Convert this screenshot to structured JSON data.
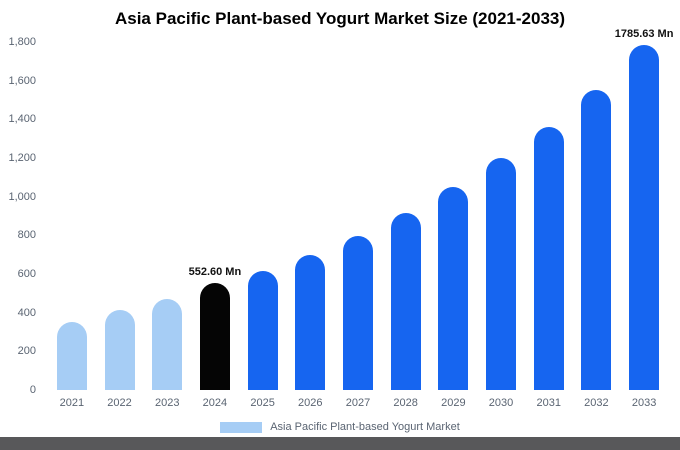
{
  "chart_data": {
    "type": "bar",
    "title": "Asia Pacific Plant-based Yogurt Market Size (2021-2033)",
    "categories": [
      "2021",
      "2022",
      "2023",
      "2024",
      "2025",
      "2026",
      "2027",
      "2028",
      "2029",
      "2030",
      "2031",
      "2032",
      "2033"
    ],
    "values": [
      352,
      415,
      472,
      552.6,
      618,
      700,
      798,
      915,
      1048,
      1198,
      1362,
      1550,
      1785.63
    ],
    "bar_colors": [
      "#a6cdf5",
      "#a6cdf5",
      "#a6cdf5",
      "#050505",
      "#1665f0",
      "#1665f0",
      "#1665f0",
      "#1665f0",
      "#1665f0",
      "#1665f0",
      "#1665f0",
      "#1665f0",
      "#1665f0"
    ],
    "ylim": [
      0,
      1800
    ],
    "yticks": [
      0,
      200,
      400,
      600,
      800,
      1000,
      1200,
      1400,
      1600,
      1800
    ],
    "grid": false,
    "annotations": [
      {
        "category": "2024",
        "text": "552.60 Mn"
      },
      {
        "category": "2033",
        "text": "1785.63 Mn"
      }
    ],
    "legend_position": "bottom",
    "legend": [
      {
        "label": "Asia Pacific Plant-based Yogurt Market",
        "color": "#a6cdf5"
      }
    ]
  }
}
